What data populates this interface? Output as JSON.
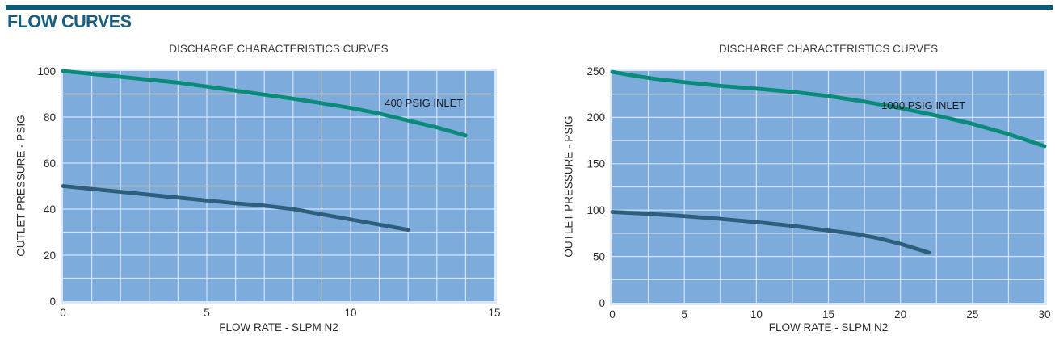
{
  "header": {
    "title": "FLOW CURVES",
    "bar_color": "#0b5878",
    "title_color": "#175e80"
  },
  "chart_data": [
    {
      "type": "line",
      "title": "DISCHARGE CHARACTERISTICS CURVES",
      "xlabel": "FLOW RATE - SLPM N2",
      "ylabel": "OUTLET PRESSURE - PSIG",
      "xlim": [
        0,
        15
      ],
      "ylim": [
        0,
        100
      ],
      "xticks": [
        0,
        5,
        10,
        15
      ],
      "yticks": [
        0,
        20,
        40,
        60,
        80,
        100
      ],
      "x_grid_step": 1,
      "y_grid_step": 10,
      "grid": true,
      "legend_position": "none",
      "plot_bg": "#7dabdc",
      "grid_color": "#d7e3f4",
      "annotation": {
        "id": "inlet-400-psig-label",
        "text": "400 PSIG INLET",
        "x": 12.55,
        "y": 84.5
      },
      "series": [
        {
          "id": "inlet-400-psig-curve",
          "color": "#0a8b79",
          "x": [
            0,
            2,
            4,
            6,
            8,
            10,
            11,
            12,
            13,
            14
          ],
          "y": [
            100,
            97.5,
            95,
            91.5,
            88,
            84,
            81.5,
            78.5,
            75.5,
            72
          ]
        },
        {
          "id": "outlet-lower-curve",
          "color": "#2d5f7d",
          "x": [
            0,
            2,
            4,
            6,
            7,
            8,
            10,
            12
          ],
          "y": [
            50,
            47.5,
            45,
            42.5,
            41.5,
            40,
            35.5,
            31
          ]
        }
      ]
    },
    {
      "type": "line",
      "title": "DISCHARGE CHARACTERISTICS CURVES",
      "xlabel": "FLOW RATE - SLPM N2",
      "ylabel": "OUTLET PRESSURE - PSIG",
      "xlim": [
        0,
        30
      ],
      "ylim": [
        0,
        250
      ],
      "xticks": [
        0,
        5,
        10,
        15,
        20,
        25,
        30
      ],
      "yticks": [
        0,
        50,
        100,
        150,
        200,
        250
      ],
      "x_grid_step": 2.5,
      "y_grid_step": 25,
      "grid": true,
      "legend_position": "none",
      "plot_bg": "#7dabdc",
      "grid_color": "#d7e3f4",
      "annotation": {
        "id": "inlet-1000-psig-label",
        "text": "1000 PSIG INLET",
        "x": 21.6,
        "y": 209
      },
      "series": [
        {
          "id": "inlet-1000-psig-curve",
          "color": "#0a8b79",
          "x": [
            0,
            1.5,
            3,
            5,
            7.5,
            10,
            12.5,
            15,
            17.5,
            20,
            22.5,
            25,
            27.5,
            30
          ],
          "y": [
            249,
            245,
            241.5,
            238,
            234,
            231,
            227.5,
            223,
            217,
            210,
            202,
            193,
            182,
            169
          ]
        },
        {
          "id": "outlet-lower-curve",
          "color": "#2d5f7d",
          "x": [
            0,
            2.5,
            5,
            7.5,
            10,
            12.5,
            15,
            17,
            18.5,
            20,
            22
          ],
          "y": [
            98,
            96,
            93.5,
            90.5,
            87,
            83,
            78,
            74,
            69.5,
            63.5,
            54
          ]
        }
      ]
    }
  ]
}
